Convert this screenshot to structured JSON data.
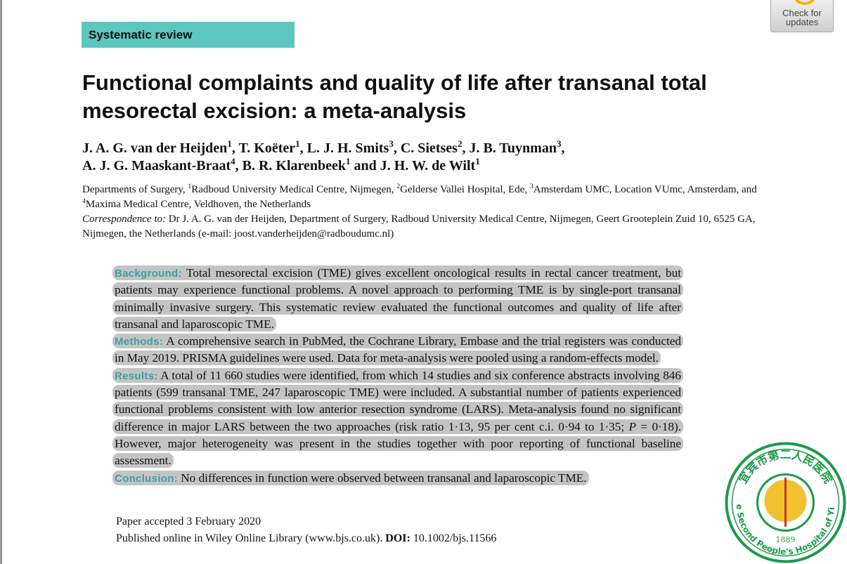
{
  "badge": "Systematic review",
  "check_updates": "Check for updates",
  "title": {
    "line1": "Functional complaints and quality of life after transanal total",
    "line2": "mesorectal excision: a meta-analysis"
  },
  "authors": {
    "line1": [
      {
        "name": "J. A. G. van der Heijden",
        "sup": "1"
      },
      {
        "name": ", T. Koëter",
        "sup": "1"
      },
      {
        "name": ", L. J. H. Smits",
        "sup": "3"
      },
      {
        "name": ", C. Sietses",
        "sup": "2"
      },
      {
        "name": ", J. B. Tuynman",
        "sup": "3"
      }
    ],
    "line1_end": ",",
    "line2": [
      {
        "name": "A. J. G. Maaskant-Braat",
        "sup": "4"
      },
      {
        "name": ", B. R. Klarenbeek",
        "sup": "1"
      },
      {
        "name": " and J. H. W. de Wilt",
        "sup": "1"
      }
    ]
  },
  "affiliations": [
    {
      "text": "Departments of Surgery, ",
      "sup": "1"
    },
    {
      "text": "Radboud University Medical Centre, Nijmegen, ",
      "sup": "2"
    },
    {
      "text": "Gelderse Vallei Hospital, Ede, ",
      "sup": "3"
    },
    {
      "text": "Amsterdam UMC, Location VUmc, Amsterdam, and ",
      "sup": "4"
    },
    {
      "text": "Maxima Medical Centre, Veldhoven, the Netherlands"
    }
  ],
  "correspondence": {
    "label": "Correspondence to:",
    "text": " Dr J. A. G. van der Heijden, Department of Surgery, Radboud University Medical Centre, Nijmegen, Geert Grooteplein Zuid 10, 6525 GA, Nijmegen, the Netherlands (e-mail: joost.vanderheijden@radboudumc.nl)"
  },
  "abstract": [
    {
      "heading": "Background:",
      "parts": [
        " Total mesorectal excision (TME) gives excellent oncological results in rectal cancer treatment, but patients may experience functional problems. A novel approach to performing TME is by single-port transanal minimally invasive surgery. This systematic review evaluated the functional outcomes and quality of life after transanal and laparoscopic TME."
      ]
    },
    {
      "heading": "Methods:",
      "parts": [
        " A comprehensive search in PubMed, the Cochrane Library, Embase and the trial registers was conducted in May 2019. PRISMA guidelines were used. Data for meta-analysis were pooled using a random-effects model."
      ]
    },
    {
      "heading": "Results:",
      "parts": [
        " A total of 11 660 studies were identified, from which 14 studies and six conference abstracts involving 846 patients (599 transanal TME, 247 laparoscopic TME) were included. A substantial number of patients experienced functional problems consistent with low anterior resection syndrome (LARS). Meta-analysis found no significant difference in major LARS between the two approaches (risk ratio 1·13, 95 per cent c.i. 0·94 to 1·35; ",
        "P",
        " = 0·18). However, major heterogeneity was present in the studies together with poor reporting of functional baseline assessment."
      ]
    },
    {
      "heading": "Conclusion:",
      "parts": [
        " No differences in function were observed between transanal and laparoscopic TME."
      ]
    }
  ],
  "footer": {
    "accepted": "Paper accepted 3 February 2020",
    "published": "Published online in Wiley Online Library (www.bjs.co.uk). ",
    "doi_label": "DOI:",
    "doi": " 10.1002/bjs.11566"
  },
  "stamp": {
    "chinese": "宜宾市第二人民医院",
    "english": "The Second People's Hospital of Yibin",
    "year": "1889"
  }
}
